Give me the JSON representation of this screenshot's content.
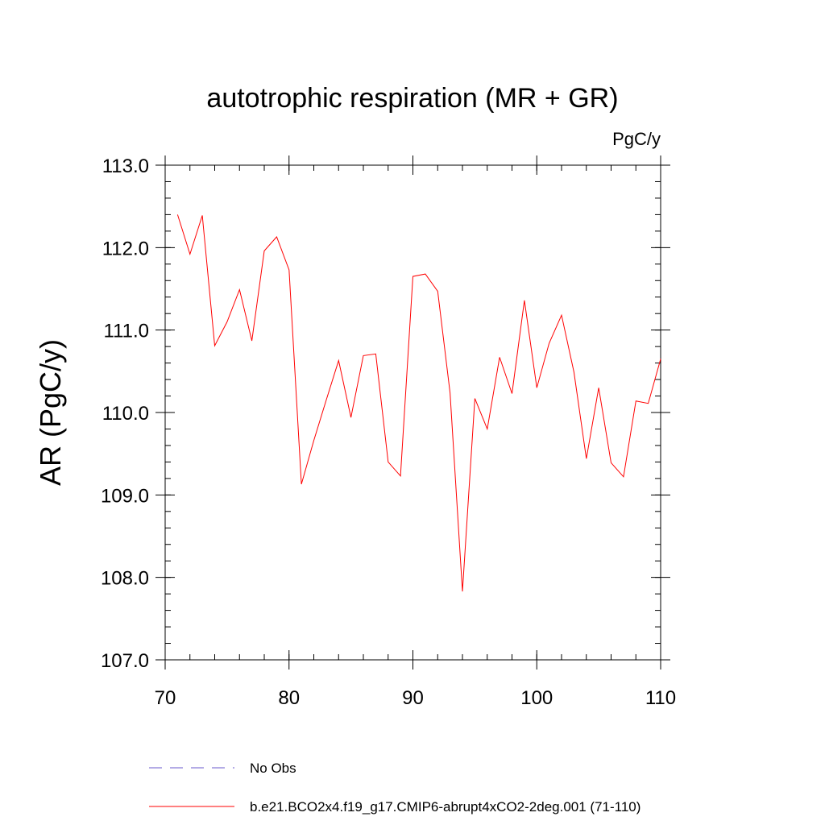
{
  "chart_data": {
    "type": "line",
    "title": "autotrophic respiration (MR + GR)",
    "units": "PgC/y",
    "ylabel": "AR  (PgC/y)",
    "xlabel": "",
    "xlim": [
      70,
      110
    ],
    "ylim": [
      107.0,
      113.0
    ],
    "x_ticks": [
      70,
      80,
      90,
      100,
      110
    ],
    "x_tick_labels": [
      "70",
      "80",
      "90",
      "100",
      "110"
    ],
    "y_ticks": [
      107.0,
      108.0,
      109.0,
      110.0,
      111.0,
      112.0,
      113.0
    ],
    "y_tick_labels": [
      "107.0",
      "108.0",
      "109.0",
      "110.0",
      "111.0",
      "112.0",
      "113.0"
    ],
    "grid": false,
    "legend_position": "bottom",
    "series": [
      {
        "name": "b.e21.BCO2x4.f19_g17.CMIP6-abrupt4xCO2-2deg.001 (71-110)",
        "color": "#ff0000",
        "style": "solid",
        "x": [
          71,
          72,
          73,
          74,
          75,
          76,
          77,
          78,
          79,
          80,
          81,
          82,
          83,
          84,
          85,
          86,
          87,
          88,
          89,
          90,
          91,
          92,
          93,
          94,
          95,
          96,
          97,
          98,
          99,
          100,
          101,
          102,
          103,
          104,
          105,
          106,
          107,
          108,
          109,
          110
        ],
        "y": [
          112.4,
          111.92,
          112.39,
          110.81,
          111.1,
          111.49,
          110.87,
          111.96,
          112.13,
          111.73,
          109.13,
          109.66,
          110.15,
          110.63,
          109.94,
          110.69,
          110.71,
          109.4,
          109.23,
          111.65,
          111.68,
          111.47,
          110.24,
          107.83,
          110.17,
          109.8,
          110.67,
          110.23,
          111.36,
          110.3,
          110.84,
          111.18,
          110.49,
          109.44,
          110.3,
          109.39,
          109.22,
          110.14,
          110.11,
          110.65
        ]
      }
    ],
    "legend": [
      {
        "label": "No Obs",
        "color": "#6a5acd",
        "style": "dashed"
      },
      {
        "label": "b.e21.BCO2x4.f19_g17.CMIP6-abrupt4xCO2-2deg.001 (71-110)",
        "color": "#ff0000",
        "style": "solid"
      }
    ]
  }
}
